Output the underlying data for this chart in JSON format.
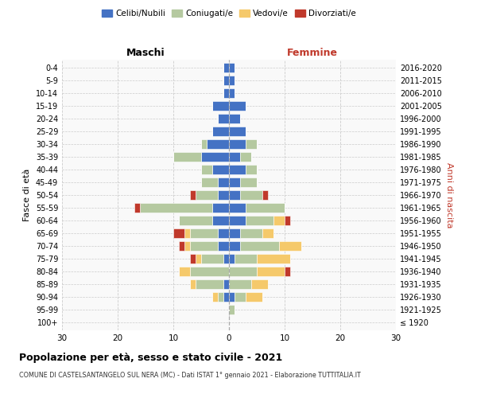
{
  "age_groups": [
    "100+",
    "95-99",
    "90-94",
    "85-89",
    "80-84",
    "75-79",
    "70-74",
    "65-69",
    "60-64",
    "55-59",
    "50-54",
    "45-49",
    "40-44",
    "35-39",
    "30-34",
    "25-29",
    "20-24",
    "15-19",
    "10-14",
    "5-9",
    "0-4"
  ],
  "birth_years": [
    "≤ 1920",
    "1921-1925",
    "1926-1930",
    "1931-1935",
    "1936-1940",
    "1941-1945",
    "1946-1950",
    "1951-1955",
    "1956-1960",
    "1961-1965",
    "1966-1970",
    "1971-1975",
    "1976-1980",
    "1981-1985",
    "1986-1990",
    "1991-1995",
    "1996-2000",
    "2001-2005",
    "2006-2010",
    "2011-2015",
    "2016-2020"
  ],
  "colors": {
    "celibi": "#4472C4",
    "coniugati": "#B5C9A0",
    "vedovi": "#F5C96B",
    "divorziati": "#C0392B"
  },
  "maschi": {
    "celibi": [
      0,
      0,
      1,
      1,
      0,
      1,
      2,
      2,
      3,
      3,
      2,
      2,
      3,
      5,
      4,
      3,
      2,
      3,
      1,
      1,
      1
    ],
    "coniugati": [
      0,
      0,
      1,
      5,
      7,
      4,
      5,
      5,
      6,
      13,
      4,
      3,
      2,
      5,
      1,
      0,
      0,
      0,
      0,
      0,
      0
    ],
    "vedovi": [
      0,
      0,
      1,
      1,
      2,
      1,
      1,
      1,
      0,
      0,
      0,
      0,
      0,
      0,
      0,
      0,
      0,
      0,
      0,
      0,
      0
    ],
    "divorziati": [
      0,
      0,
      0,
      0,
      0,
      1,
      1,
      2,
      0,
      1,
      1,
      0,
      0,
      0,
      0,
      0,
      0,
      0,
      0,
      0,
      0
    ]
  },
  "femmine": {
    "celibi": [
      0,
      0,
      1,
      0,
      0,
      1,
      2,
      2,
      3,
      3,
      2,
      2,
      3,
      2,
      3,
      3,
      2,
      3,
      1,
      1,
      1
    ],
    "coniugati": [
      0,
      1,
      2,
      4,
      5,
      4,
      7,
      4,
      5,
      7,
      4,
      3,
      2,
      2,
      2,
      0,
      0,
      0,
      0,
      0,
      0
    ],
    "vedovi": [
      0,
      0,
      3,
      3,
      5,
      6,
      4,
      2,
      2,
      0,
      0,
      0,
      0,
      0,
      0,
      0,
      0,
      0,
      0,
      0,
      0
    ],
    "divorziati": [
      0,
      0,
      0,
      0,
      1,
      0,
      0,
      0,
      1,
      0,
      1,
      0,
      0,
      0,
      0,
      0,
      0,
      0,
      0,
      0,
      0
    ]
  },
  "xlim": 30,
  "title": "Popolazione per età, sesso e stato civile - 2021",
  "subtitle": "COMUNE DI CASTELSANTANGELO SUL NERA (MC) - Dati ISTAT 1° gennaio 2021 - Elaborazione TUTTITALIA.IT",
  "ylabel_left": "Fasce di età",
  "ylabel_right": "Anni di nascita",
  "label_maschi": "Maschi",
  "label_femmine": "Femmine",
  "legend_labels": [
    "Celibi/Nubili",
    "Coniugati/e",
    "Vedovi/e",
    "Divorziati/e"
  ],
  "bg_color": "#f9f9f9",
  "grid_color": "#cccccc"
}
